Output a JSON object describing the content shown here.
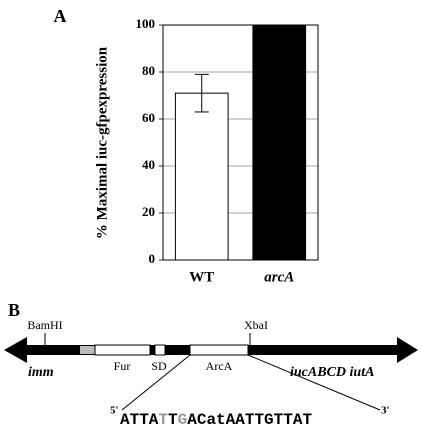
{
  "chart_data": {
    "type": "bar",
    "panel_label": "A",
    "ylabel": "% Maximal iuc-gfpexpression",
    "categories": [
      "WT",
      "arcA"
    ],
    "values": [
      71,
      100
    ],
    "errors": [
      8,
      null
    ],
    "colors": [
      "#ffffff",
      "#000000"
    ],
    "ylim": [
      0,
      100
    ],
    "yticks": [
      0,
      20,
      40,
      60,
      80,
      100
    ],
    "grid": true
  },
  "diagram": {
    "panel_label": "B",
    "sites": [
      "BamHI",
      "XbaI"
    ],
    "genes": [
      "imm",
      "iucABCD iutA"
    ],
    "boxes": [
      "Fur",
      "SD",
      "ArcA"
    ],
    "five_prime": "5'",
    "three_prime": "3'",
    "sequence": [
      {
        "text": "ATTA",
        "highlight": false
      },
      {
        "text": "T",
        "highlight": true
      },
      {
        "text": "T",
        "highlight": false
      },
      {
        "text": "G",
        "highlight": true
      },
      {
        "text": "ACatAATTGTTAT",
        "highlight": false
      }
    ]
  }
}
